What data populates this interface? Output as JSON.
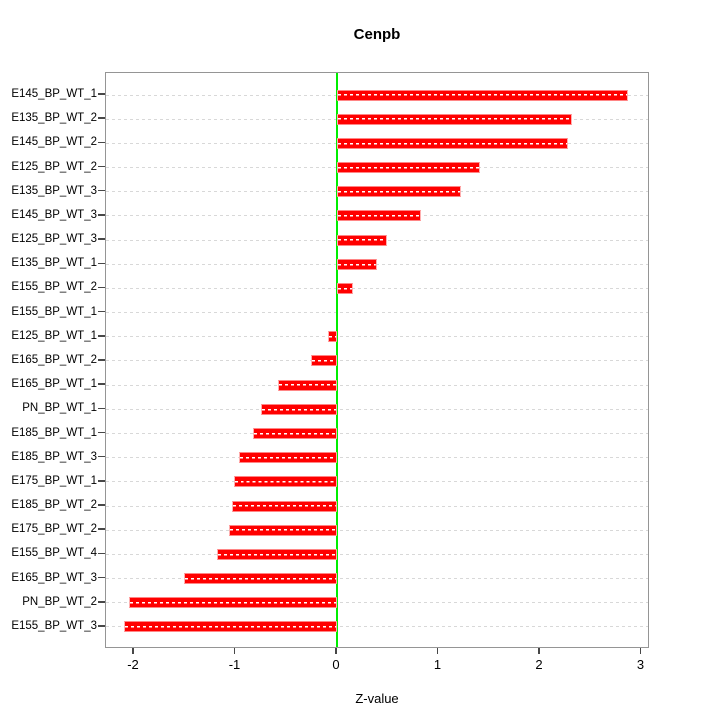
{
  "title": "Cenpb",
  "chart_data": {
    "type": "bar",
    "orientation": "horizontal",
    "title": "Cenpb",
    "xlabel": "Z-value",
    "categories": [
      "E145_BP_WT_1",
      "E135_BP_WT_2",
      "E145_BP_WT_2",
      "E125_BP_WT_2",
      "E135_BP_WT_3",
      "E145_BP_WT_3",
      "E125_BP_WT_3",
      "E135_BP_WT_1",
      "E155_BP_WT_2",
      "E155_BP_WT_1",
      "E125_BP_WT_1",
      "E165_BP_WT_2",
      "E165_BP_WT_1",
      "PN_BP_WT_1",
      "E185_BP_WT_1",
      "E185_BP_WT_3",
      "E175_BP_WT_1",
      "E185_BP_WT_2",
      "E175_BP_WT_2",
      "E155_BP_WT_4",
      "E165_BP_WT_3",
      "PN_BP_WT_2",
      "E155_BP_WT_3"
    ],
    "values": [
      2.87,
      2.32,
      2.28,
      1.41,
      1.22,
      0.83,
      0.49,
      0.39,
      0.16,
      0.0,
      -0.09,
      -0.26,
      -0.58,
      -0.75,
      -0.83,
      -0.97,
      -1.01,
      -1.03,
      -1.06,
      -1.18,
      -1.51,
      -2.05,
      -2.1
    ],
    "x_ticks": [
      -2,
      -1,
      0,
      1,
      2,
      3
    ],
    "x_tick_labels": [
      "-2",
      "-1",
      "0",
      "1",
      "2",
      "3"
    ],
    "xlim": [
      -2.28,
      3.08
    ],
    "grid": true,
    "grid_style": "dashed",
    "zero_line": true,
    "legend": "none",
    "colors": {
      "bar": "#ff0000",
      "bar_dash": "#ffffff",
      "zero_line": "#00ee00",
      "grid": "#d8d8d8",
      "box": "#959595",
      "text": "#000000"
    }
  }
}
